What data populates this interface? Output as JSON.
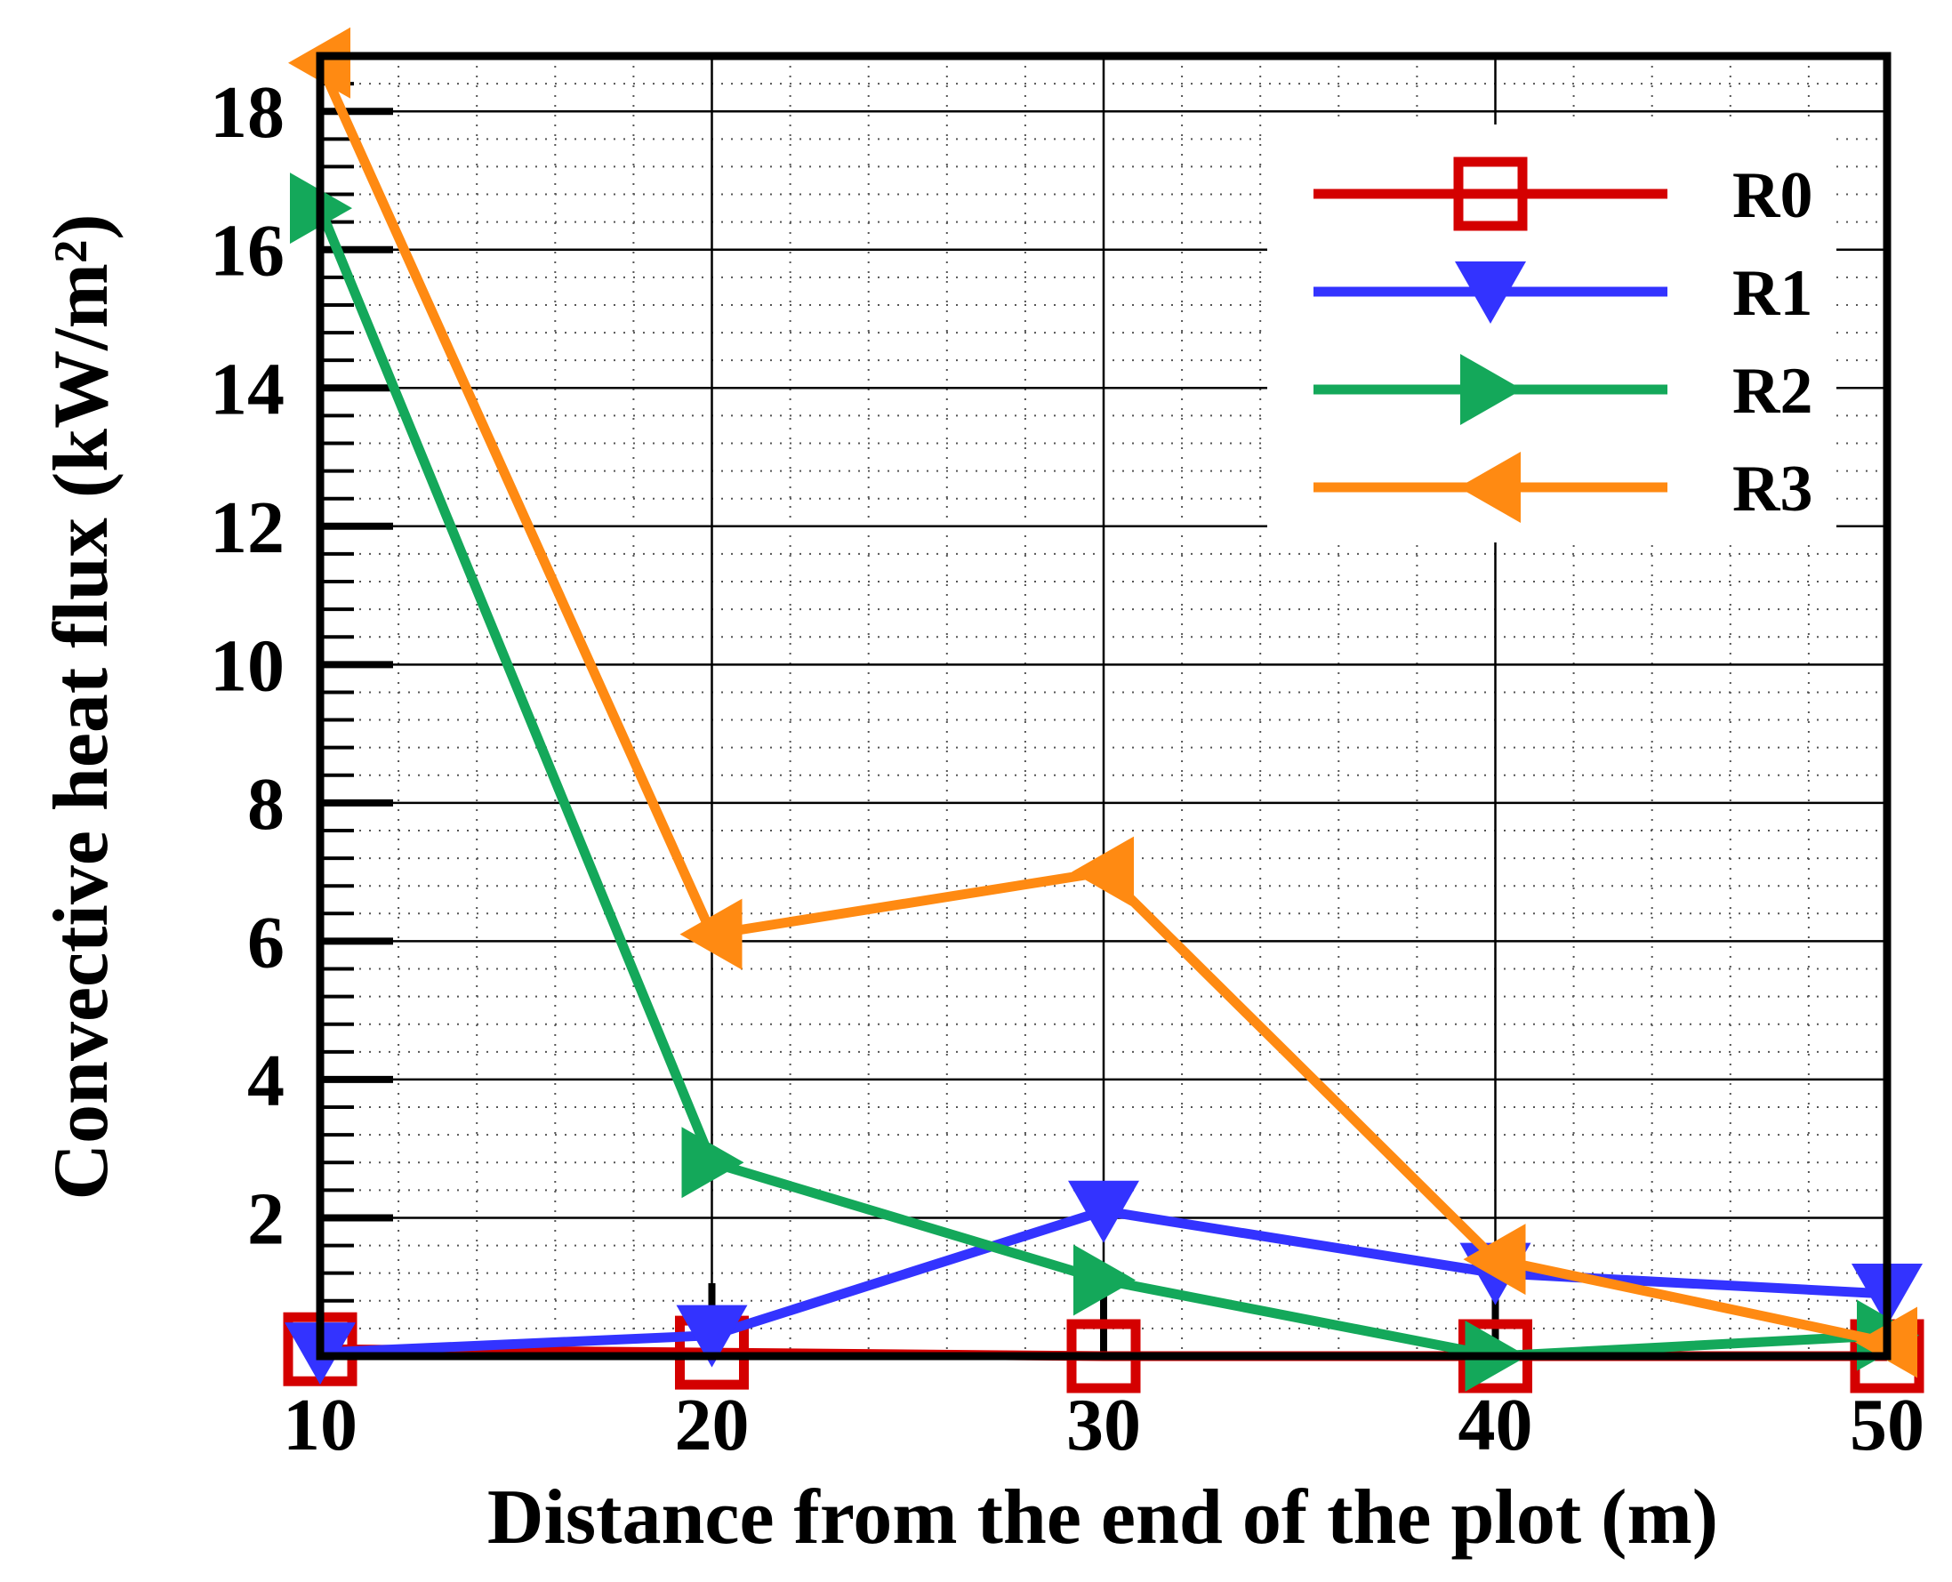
{
  "chart_data": {
    "type": "line",
    "title": "",
    "xlabel": "Distance from the end of the plot (m)",
    "ylabel": "Convective heat flux (kW/m²)",
    "x": [
      10,
      20,
      30,
      40,
      50
    ],
    "xlim": [
      10,
      50
    ],
    "ylim": [
      0,
      18.8
    ],
    "x_ticks": [
      "10",
      "20",
      "30",
      "40",
      "50"
    ],
    "y_ticks": [
      "2",
      "4",
      "6",
      "8",
      "10",
      "12",
      "14",
      "16",
      "18"
    ],
    "grid": true,
    "legend_position": "top-right",
    "series": [
      {
        "name": "R0",
        "color": "#d40000",
        "marker": "square",
        "values": [
          0.1,
          0.05,
          0.0,
          0.0,
          0.0
        ]
      },
      {
        "name": "R1",
        "color": "#3333ff",
        "marker": "triangle-down",
        "values": [
          0.05,
          0.3,
          2.1,
          1.2,
          0.9
        ]
      },
      {
        "name": "R2",
        "color": "#14a85a",
        "marker": "triangle-right",
        "values": [
          16.6,
          2.8,
          1.1,
          0.0,
          0.3
        ]
      },
      {
        "name": "R3",
        "color": "#ff8a12",
        "marker": "triangle-left",
        "values": [
          18.7,
          6.1,
          7.0,
          1.4,
          0.2
        ]
      }
    ]
  }
}
